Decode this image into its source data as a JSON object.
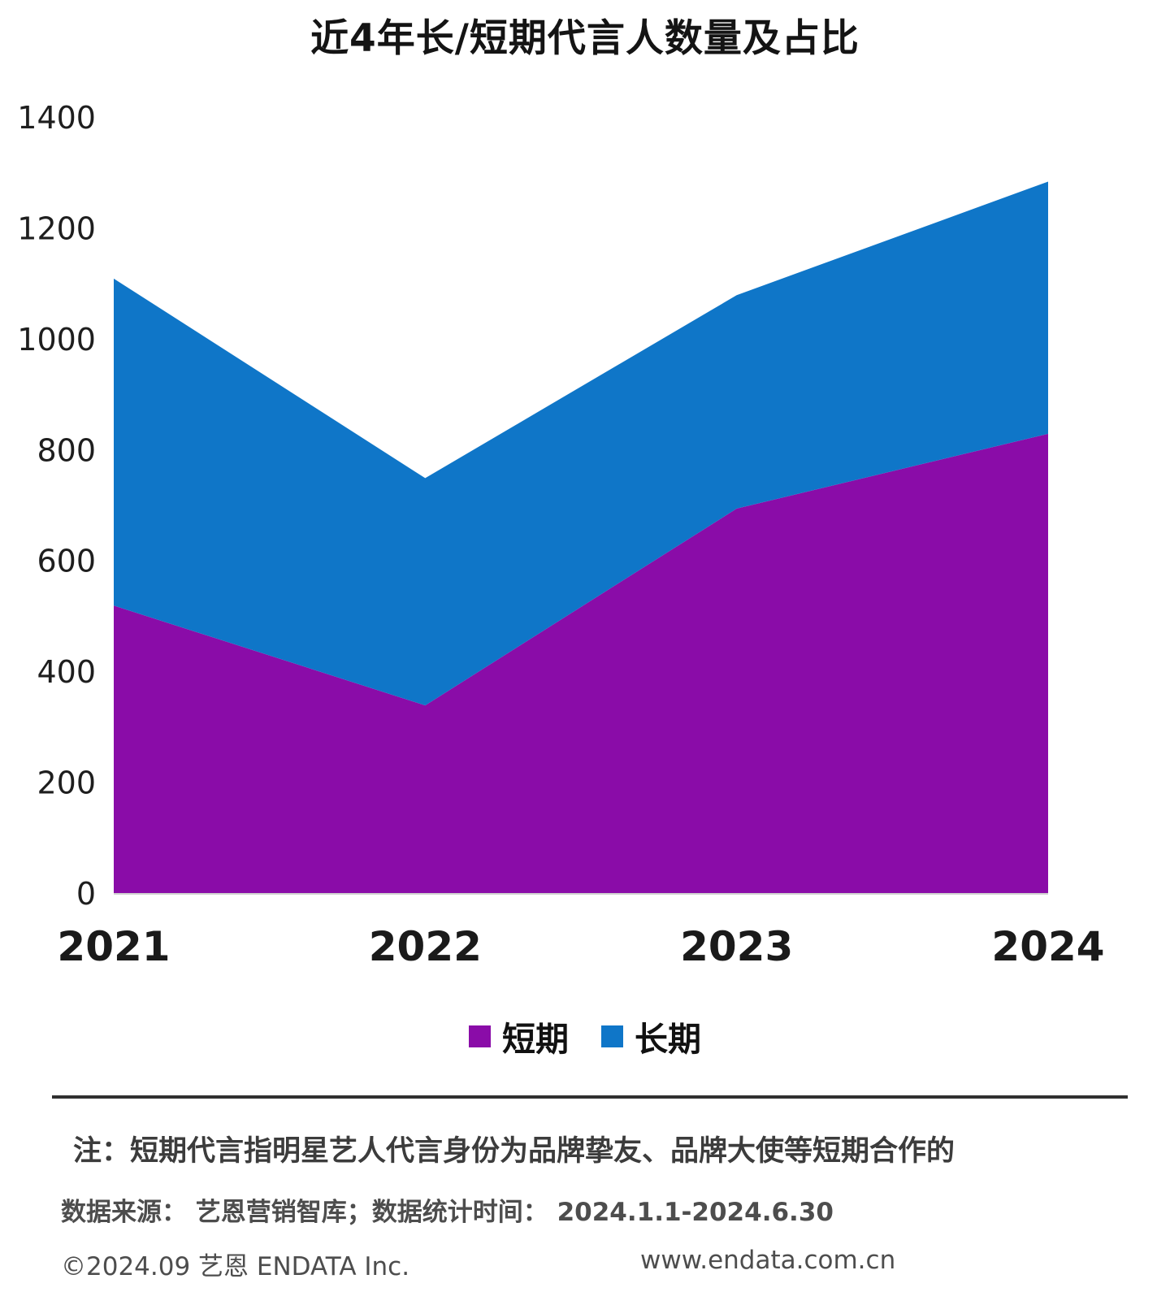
{
  "chart_data": {
    "type": "area",
    "stacked": true,
    "title": "近4年长/短期代言人数量及占比",
    "x": [
      "2021",
      "2022",
      "2023",
      "2024"
    ],
    "series": [
      {
        "name": "短期",
        "values": [
          520,
          340,
          695,
          830
        ],
        "color": "#8A0CA8"
      },
      {
        "name": "长期",
        "values": [
          590,
          410,
          385,
          455
        ],
        "color": "#0F76C8"
      }
    ],
    "stacked_totals": [
      1110,
      750,
      1080,
      1285
    ],
    "xlabel": "",
    "ylabel": "",
    "ylim": [
      0,
      1400
    ],
    "yticks": [
      0,
      200,
      400,
      600,
      800,
      1000,
      1200,
      1400
    ],
    "grid": false,
    "legend_position": "bottom"
  },
  "footer": {
    "note": "注：短期代言指明星艺人代言身份为品牌挚友、品牌大使等短期合作的",
    "source": "数据来源： 艺恩营销智库；数据统计时间： 2024.1.1-2024.6.30",
    "copyright": "©2024.09 艺恩 ENDATA Inc.",
    "website": "www.endata.com.cn"
  }
}
